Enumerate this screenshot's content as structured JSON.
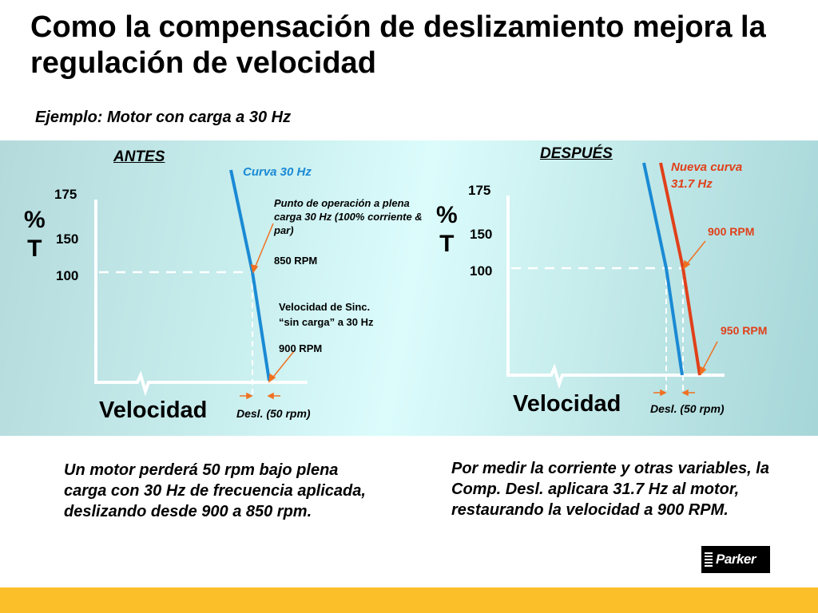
{
  "slide": {
    "title": "Como la compensación de deslizamiento mejora la regulación de velocidad",
    "subtitle": "Ejemplo: Motor con carga a 30 Hz"
  },
  "before": {
    "heading": "ANTES",
    "y_label_symbol": "%",
    "y_label_letter": "T",
    "ticks": [
      "175",
      "150",
      "100"
    ],
    "x_label": "Velocidad",
    "slip_label": "Desl. (50 rpm)",
    "curve_label": "Curva 30 Hz",
    "operating_point_note": "Punto de operación a plena carga 30 Hz (100% corriente & par)",
    "operating_point_rpm": "850 RPM",
    "sync_note_line1": "Velocidad de Sinc.",
    "sync_note_line2": "“sin carga”  a 30 Hz",
    "sync_rpm": "900 RPM"
  },
  "after": {
    "heading": "DESPUÉS",
    "y_label_symbol": "%",
    "y_label_letter": "T",
    "ticks": [
      "175",
      "150",
      "100"
    ],
    "x_label": "Velocidad",
    "slip_label": "Desl. (50 rpm)",
    "new_curve_label_line1": "Nueva curva",
    "new_curve_label_line2": "31.7 Hz",
    "rpm_at_load": "900 RPM",
    "rpm_no_load": "950 RPM"
  },
  "colors": {
    "curve_30hz": "#1a8ad4",
    "curve_31_7hz": "#e0401a",
    "accent_bar": "#fbbf2a"
  },
  "text_left": "Un motor perderá 50 rpm bajo plena carga con 30 Hz de frecuencia aplicada, deslizando desde 900 a 850 rpm.",
  "text_right": "Por medir la corriente y otras variables, la Comp. Desl. aplicara 31.7 Hz al motor, restaurando la velocidad a 900 RPM.",
  "logo": {
    "text": "Parker"
  }
}
